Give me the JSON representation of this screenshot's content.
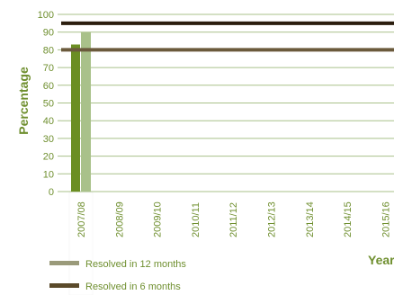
{
  "chart_data": {
    "type": "bar",
    "categories": [
      "2007/08",
      "2008/09",
      "2009/10",
      "2010/11",
      "2011/12",
      "2012/13",
      "2013/14",
      "2014/15",
      "2015/16"
    ],
    "series": [
      {
        "name": "Resolved in 6 months",
        "values": [
          83,
          null,
          null,
          null,
          null,
          null,
          null,
          null,
          null
        ],
        "color": "#6b8e23"
      },
      {
        "name": "Resolved in 12 months",
        "values": [
          90,
          null,
          null,
          null,
          null,
          null,
          null,
          null,
          null
        ],
        "color": "#a9c18a"
      }
    ],
    "reference_lines": [
      {
        "value": 95,
        "color": "#2b1d0e"
      },
      {
        "value": 80,
        "color": "#6b5a3c"
      }
    ],
    "ylabel": "Percentage",
    "xlabel": "Year",
    "ylim": [
      0,
      100
    ],
    "yticks": [
      0,
      10,
      20,
      30,
      40,
      50,
      60,
      70,
      80,
      90,
      100
    ],
    "highlight_category": "2007/08",
    "grid": true,
    "legend": {
      "position": "bottom-left",
      "items": [
        {
          "label": "Resolved in 12 months",
          "color": "#9a9a7a"
        },
        {
          "label": "Resolved in 6 months",
          "color": "#5a4a2a"
        }
      ]
    }
  }
}
